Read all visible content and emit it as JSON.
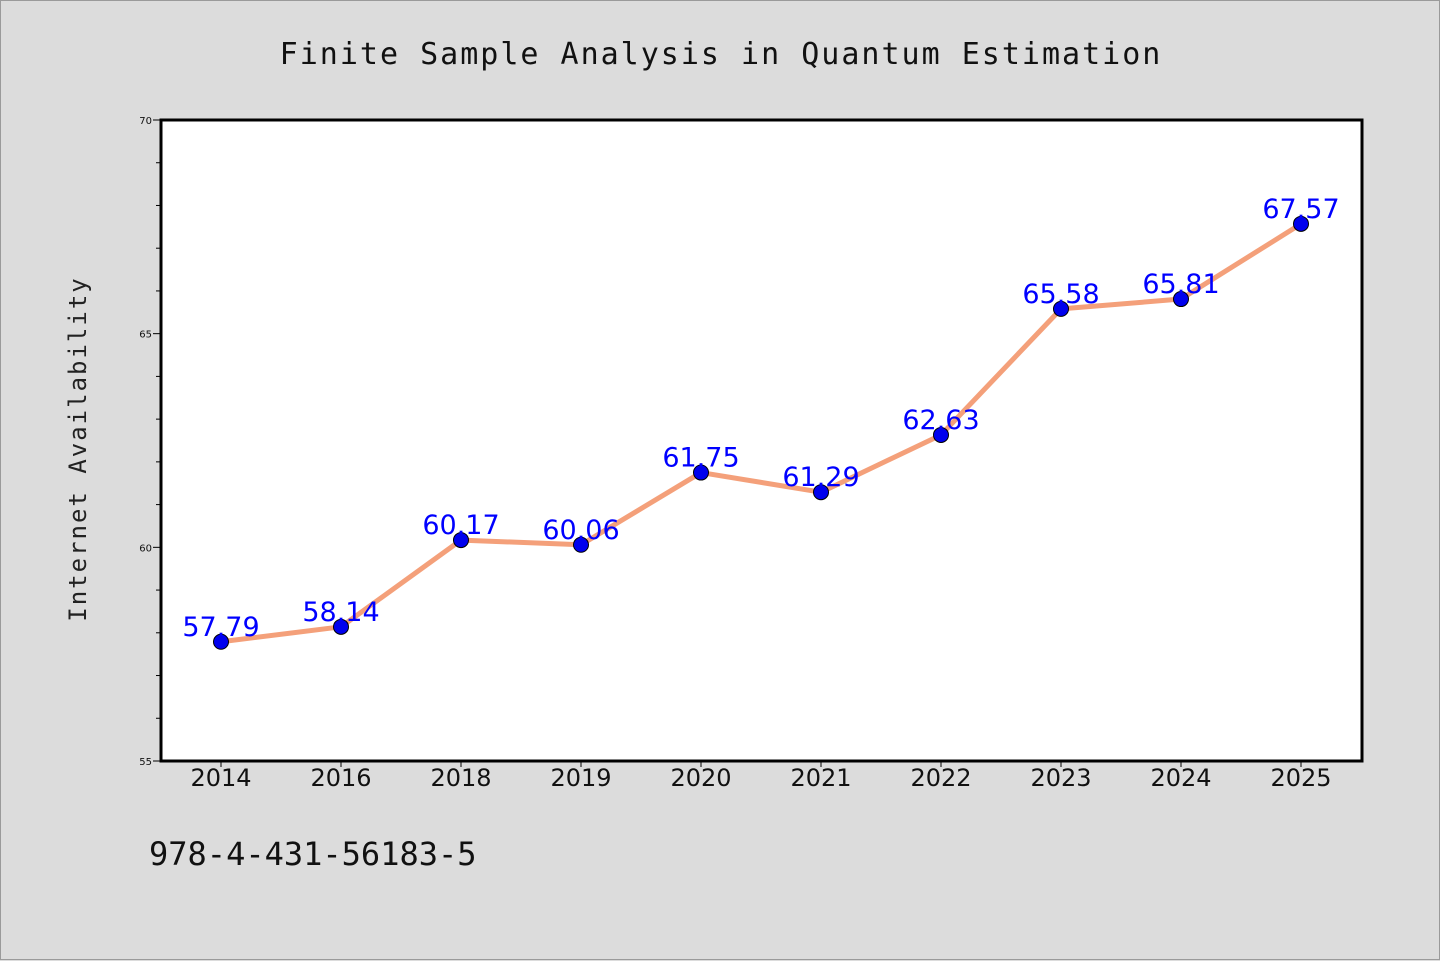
{
  "chart_data": {
    "type": "line",
    "title": "Finite Sample Analysis in Quantum Estimation",
    "xlabel": "",
    "ylabel": "Internet Availability",
    "categories": [
      "2014",
      "2016",
      "2018",
      "2019",
      "2020",
      "2021",
      "2022",
      "2023",
      "2024",
      "2025"
    ],
    "series": [
      {
        "values": [
          57.79,
          58.14,
          60.17,
          60.06,
          61.75,
          61.29,
          62.63,
          65.58,
          65.81,
          67.57
        ],
        "data_labels": [
          "57.79",
          "58.14",
          "60.17",
          "60.06",
          "61.75",
          "61.29",
          "62.63",
          "65.58",
          "65.81",
          "67.57"
        ],
        "line_color": "#f4a07a",
        "marker_color": "#0000ee",
        "label_color": "#0000ff"
      }
    ],
    "ylim": [
      55,
      70
    ],
    "yticks": [
      55,
      60,
      65,
      70
    ],
    "ytick_labels": [
      "55",
      "60",
      "65",
      "70"
    ],
    "y_minor_step": 1,
    "grid": false,
    "legend": "none"
  },
  "footnote": "978-4-431-56183-5",
  "colors": {
    "background": "#dcdcdc",
    "plot_background": "#ffffff",
    "axis": "#000000"
  }
}
